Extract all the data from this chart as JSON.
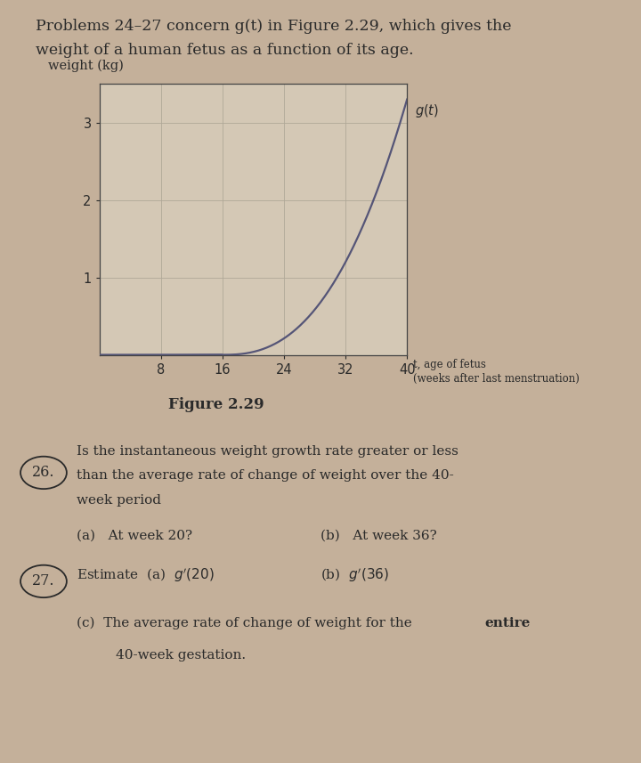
{
  "bg_color": "#c4b09a",
  "panel1_bg": "#cec2b0",
  "panel2_bg": "#c9ba9e",
  "chart_bg": "#d4c8b5",
  "header_text_line1": "Problems 24–27 concern g(t) in Figure 2.29, which gives the",
  "header_text_line2": "weight of a human fetus as a function of its age.",
  "ylabel": "weight (kg)",
  "xlabel_line1": "t, age of fetus",
  "xlabel_line2": "(weeks after last menstruation)",
  "xticks": [
    8,
    16,
    24,
    32,
    40
  ],
  "yticks": [
    1,
    2,
    3
  ],
  "figure_caption": "Figure 2.29",
  "curve_color": "#555577",
  "grid_color": "#b0a898",
  "axis_color": "#444444",
  "text_color": "#2a2a2a",
  "p26_body_line1": "Is the instantaneous weight growth rate greater or less",
  "p26_body_line2": "than the average rate of change of weight over the 40-",
  "p26_body_line3": "week period",
  "p26a": "(a)   At week 20?",
  "p26b": "(b)   At week 36?",
  "p27_line": "Estimate (a)   g′(20)",
  "p27b": "(b)   g′(36)",
  "p27c_pre": "(c)   The average rate of change of weight for the ",
  "p27c_bold": "entire",
  "p27c_line2": "      40-week gestation."
}
